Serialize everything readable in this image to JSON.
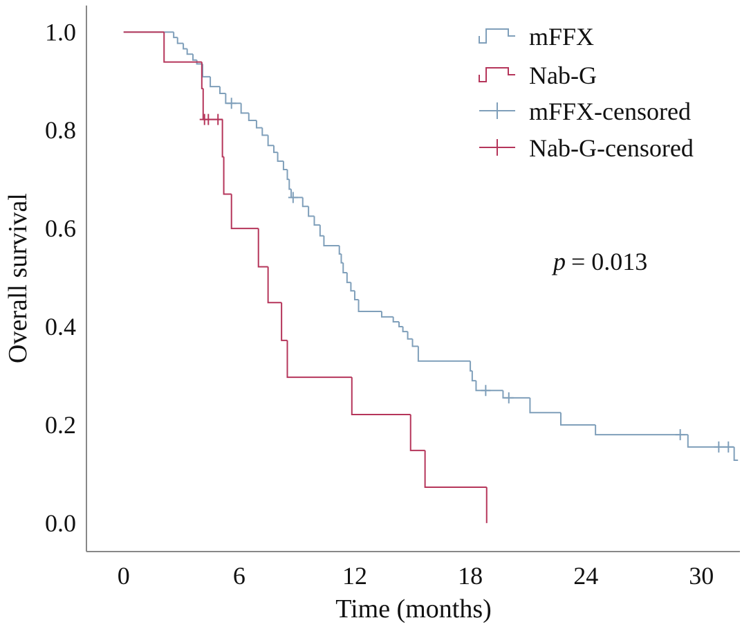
{
  "chart_data": {
    "type": "step",
    "xlabel": "Time (months)",
    "ylabel": "Overall survival",
    "xlim": [
      -1.93,
      32
    ],
    "ylim": [
      -0.058,
      1.054
    ],
    "xticks": [
      0,
      6,
      12,
      18,
      24,
      30
    ],
    "yticks": [
      {
        "value": 0,
        "label": "0.0"
      },
      0.2,
      0.4,
      0.6,
      0.8,
      {
        "value": 1,
        "label": "1.0"
      }
    ],
    "legend": "upper right",
    "annotation": {
      "italic": "p",
      "text": "= 0.013"
    },
    "series": [
      {
        "name": "mFFX",
        "color": "#7f9fba",
        "x": [
          0,
          2.6,
          2.8,
          3.1,
          3.3,
          3.6,
          3.8,
          4.1,
          4.5,
          5.0,
          5.3,
          6.1,
          6.5,
          6.9,
          7.2,
          7.5,
          7.8,
          8.0,
          8.3,
          8.5,
          8.6,
          8.7,
          9.3,
          9.6,
          9.9,
          10.2,
          10.4,
          11.2,
          11.3,
          11.4,
          11.6,
          11.8,
          12.0,
          12.2,
          13.4,
          14.0,
          14.3,
          14.5,
          14.75,
          15.0,
          15.3,
          18.0,
          18.1,
          18.3,
          19.7,
          21.1,
          22.7,
          24.5,
          29.3,
          31.7,
          31.9
        ],
        "values": [
          1.0,
          0.989,
          0.977,
          0.966,
          0.955,
          0.943,
          0.935,
          0.909,
          0.889,
          0.875,
          0.855,
          0.835,
          0.82,
          0.805,
          0.79,
          0.769,
          0.755,
          0.737,
          0.72,
          0.7,
          0.68,
          0.663,
          0.645,
          0.625,
          0.607,
          0.585,
          0.565,
          0.548,
          0.53,
          0.51,
          0.49,
          0.473,
          0.455,
          0.431,
          0.42,
          0.41,
          0.4,
          0.39,
          0.375,
          0.36,
          0.33,
          0.31,
          0.29,
          0.27,
          0.255,
          0.225,
          0.2,
          0.18,
          0.155,
          0.128,
          0.128
        ]
      },
      {
        "name": "Nab-G",
        "color": "#b5355a",
        "x": [
          0,
          2.1,
          4.06,
          4.13,
          5.13,
          5.2,
          5.6,
          7.0,
          7.5,
          8.2,
          8.5,
          11.85,
          14.9,
          15.65,
          18.85
        ],
        "values": [
          1.0,
          0.939,
          0.885,
          0.822,
          0.746,
          0.67,
          0.6,
          0.522,
          0.449,
          0.372,
          0.297,
          0.221,
          0.148,
          0.073,
          0.0
        ]
      },
      {
        "name": "mFFX-censored",
        "color": "#7f9fba",
        "marker": "+",
        "x": [
          5.6,
          8.8,
          18.8,
          20.0,
          28.9,
          30.9,
          31.4
        ],
        "values": [
          0.855,
          0.663,
          0.27,
          0.255,
          0.18,
          0.155,
          0.155
        ]
      },
      {
        "name": "Nab-G-censored",
        "color": "#b5355a",
        "marker": "+",
        "x": [
          4.2,
          4.4,
          4.9
        ],
        "values": [
          0.822,
          0.822,
          0.822
        ]
      }
    ]
  }
}
